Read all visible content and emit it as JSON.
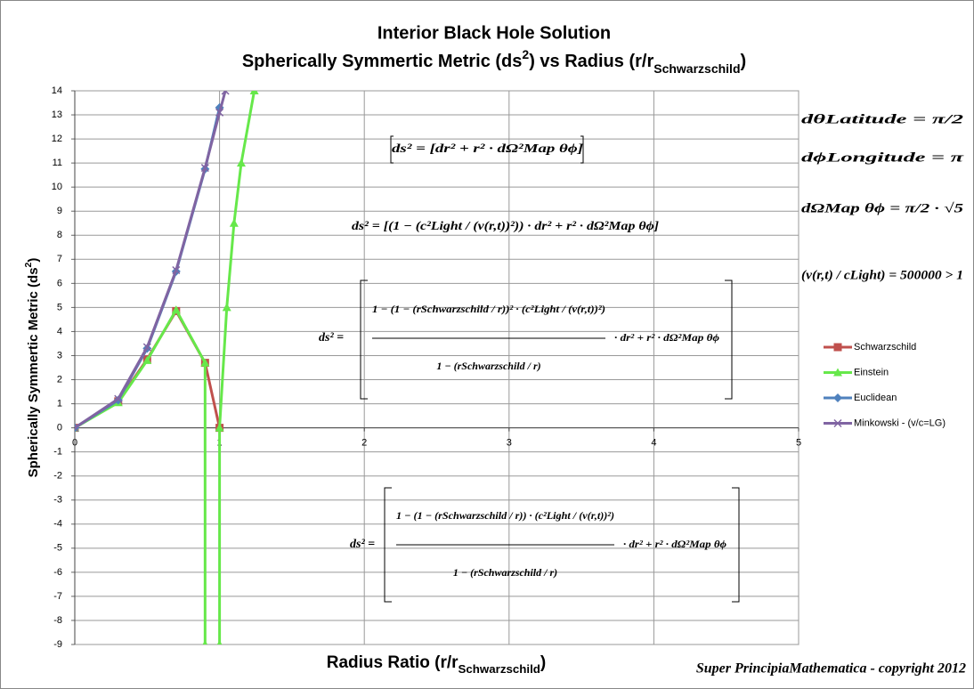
{
  "chart_data": {
    "type": "line",
    "title": "Interior Black Hole Solution",
    "subtitle": [
      "Spherically Symmertic Metric (ds",
      {
        "sup": "2"
      },
      ") vs Radius (r/r",
      {
        "sub": "Schwarzschild"
      },
      ")"
    ],
    "xlabel": [
      "Radius Ratio (r/r",
      {
        "sub": "Schwarzschild"
      },
      ")"
    ],
    "ylabel": [
      "Spherically Symmertic Metric (ds",
      {
        "sup": "2"
      },
      ")"
    ],
    "xlim": [
      0,
      5
    ],
    "xticks": [
      0,
      1,
      2,
      3,
      4,
      5
    ],
    "ylim": [
      -9,
      14
    ],
    "yticks": [
      -9,
      -8,
      -7,
      -6,
      -5,
      -4,
      -3,
      -2,
      -1,
      0,
      1,
      2,
      3,
      4,
      5,
      6,
      7,
      8,
      9,
      10,
      11,
      12,
      13,
      14
    ],
    "grid": true,
    "legend": "right",
    "series": [
      {
        "name": "Schwarzschild",
        "color": "#c0504d",
        "marker": "square",
        "x": [
          0,
          0.3,
          0.5,
          0.7,
          0.9,
          1.0
        ],
        "values": [
          0,
          1.1,
          2.85,
          4.85,
          2.7,
          0
        ]
      },
      {
        "name": "Einstein",
        "color": "#66e84a",
        "marker": "triangle",
        "x": [
          0,
          0.3,
          0.5,
          0.7,
          0.9,
          0.9,
          0.95,
          1.0,
          1.0,
          1.05,
          1.1,
          1.15,
          1.24
        ],
        "values": [
          0,
          1.05,
          2.8,
          4.9,
          2.7,
          -9,
          null,
          -9,
          0,
          5,
          8.5,
          11,
          14
        ]
      },
      {
        "name": "Euclidean",
        "color": "#4f81bd",
        "marker": "diamond",
        "x": [
          0,
          0.3,
          0.5,
          0.7,
          0.9,
          1.0
        ],
        "values": [
          0,
          1.15,
          3.3,
          6.5,
          10.75,
          13.3
        ]
      },
      {
        "name": "Minkowski - (v/c=LG)",
        "color": "#8064a2",
        "marker": "x",
        "x": [
          0,
          0.3,
          0.5,
          0.7,
          0.9,
          1.0,
          1.04
        ],
        "values": [
          0,
          1.2,
          3.35,
          6.55,
          10.8,
          13.1,
          14
        ]
      }
    ],
    "equations": [
      "ds² = [dr² + r² · dΩ²Map θϕ]",
      "ds² = [(1 − (c²Light / (v(r,t))²)) · dr² + r² · dΩ²Map θϕ]"
    ],
    "fractions": [
      {
        "lhs": "ds² =",
        "numerator": "1 − (1 − (rSchwarzschild / r))² · (c²Light / (v(r,t))²)",
        "denominator": "1 − (rSchwarzschild / r)",
        "tail": "· dr² + r² · dΩ²Map θϕ"
      },
      {
        "lhs": "ds² =",
        "numerator": "1 − (1 − (rSchwarzschild / r)) · (c²Light / (v(r,t))²)",
        "denominator": "1 − (rSchwarzschild / r)",
        "tail": "· dr² + r² · dΩ²Map θϕ"
      }
    ],
    "constants": [
      "dθLatitude = π/2",
      "dϕLongitude = π",
      "dΩMap θϕ = π/2 · √5",
      "(v(r,t) / cLight) = 500000 > 1"
    ],
    "copyright": "Super PrincipiaMathematica - copyright 2012"
  }
}
